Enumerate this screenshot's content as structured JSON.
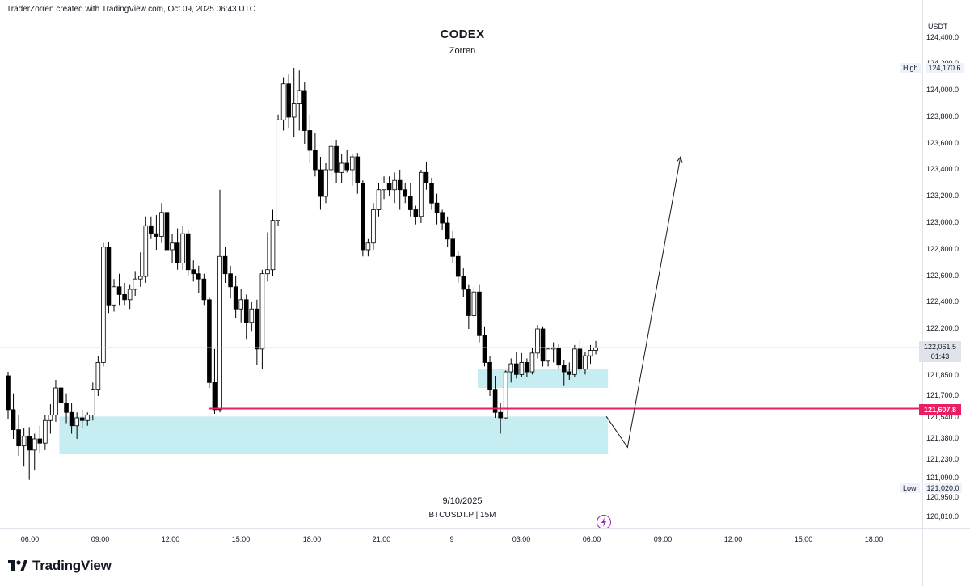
{
  "header": {
    "credit": "TraderZorren created with TradingView.com, Oct 09, 2025 06:43 UTC"
  },
  "title": "CODEX",
  "subtitle": "Zorren",
  "date_caption": "9/10/2025",
  "symbol_caption": "BTCUSDT.P | 15M",
  "currency": "USDT",
  "logo_text": "TradingView",
  "colors": {
    "bull": "#ffffff",
    "bear": "#000000",
    "zone": "#c6edf2",
    "level_line": "#e91e63",
    "projection": "#131722"
  },
  "markers": {
    "high_label": "High",
    "high_value": "124,170.6",
    "low_label": "Low",
    "low_value": "121,020.0",
    "current_price": "122,061.5",
    "countdown": "01:43",
    "level_price": "121,607.8"
  },
  "chart_data": {
    "type": "candlestick",
    "interval": "15M",
    "x_ticks": [
      "06:00",
      "09:00",
      "12:00",
      "15:00",
      "18:00",
      "21:00",
      "9",
      "03:00",
      "06:00",
      "09:00",
      "12:00",
      "15:00",
      "18:00"
    ],
    "y_ticks": [
      "124,400.0",
      "124,200.0",
      "124,000.0",
      "123,800.0",
      "123,600.0",
      "123,400.0",
      "123,200.0",
      "123,000.0",
      "122,800.0",
      "122,600.0",
      "122,400.0",
      "122,200.0",
      "121,850.0",
      "121,700.0",
      "121,540.0",
      "121,380.0",
      "121,230.0",
      "121,090.0",
      "120,950.0",
      "120,810.0"
    ],
    "y_tick_values": [
      124400,
      124200,
      124000,
      123800,
      123600,
      123400,
      123200,
      123000,
      122800,
      122600,
      122400,
      122200,
      121850,
      121700,
      121540,
      121380,
      121230,
      121090,
      120950,
      120810
    ],
    "candles": [
      {
        "o": 121850,
        "h": 121880,
        "l": 121530,
        "c": 121600
      },
      {
        "o": 121600,
        "h": 121720,
        "l": 121380,
        "c": 121450
      },
      {
        "o": 121450,
        "h": 121560,
        "l": 121260,
        "c": 121330
      },
      {
        "o": 121330,
        "h": 121460,
        "l": 121180,
        "c": 121400
      },
      {
        "o": 121400,
        "h": 121470,
        "l": 121080,
        "c": 121300
      },
      {
        "o": 121300,
        "h": 121420,
        "l": 121150,
        "c": 121380
      },
      {
        "o": 121380,
        "h": 121480,
        "l": 121280,
        "c": 121350
      },
      {
        "o": 121350,
        "h": 121560,
        "l": 121300,
        "c": 121520
      },
      {
        "o": 121520,
        "h": 121640,
        "l": 121420,
        "c": 121560
      },
      {
        "o": 121560,
        "h": 121820,
        "l": 121510,
        "c": 121760
      },
      {
        "o": 121760,
        "h": 121830,
        "l": 121600,
        "c": 121650
      },
      {
        "o": 121650,
        "h": 121720,
        "l": 121500,
        "c": 121580
      },
      {
        "o": 121580,
        "h": 121650,
        "l": 121420,
        "c": 121480
      },
      {
        "o": 121480,
        "h": 121580,
        "l": 121380,
        "c": 121540
      },
      {
        "o": 121540,
        "h": 121600,
        "l": 121460,
        "c": 121520
      },
      {
        "o": 121520,
        "h": 121580,
        "l": 121480,
        "c": 121560
      },
      {
        "o": 121560,
        "h": 121800,
        "l": 121520,
        "c": 121750
      },
      {
        "o": 121750,
        "h": 122000,
        "l": 121700,
        "c": 121950
      },
      {
        "o": 121950,
        "h": 122850,
        "l": 121920,
        "c": 122820
      },
      {
        "o": 122820,
        "h": 122860,
        "l": 122320,
        "c": 122380
      },
      {
        "o": 122380,
        "h": 122580,
        "l": 122330,
        "c": 122520
      },
      {
        "o": 122520,
        "h": 122620,
        "l": 122380,
        "c": 122460
      },
      {
        "o": 122460,
        "h": 122550,
        "l": 122380,
        "c": 122420
      },
      {
        "o": 122420,
        "h": 122540,
        "l": 122350,
        "c": 122500
      },
      {
        "o": 122500,
        "h": 122640,
        "l": 122450,
        "c": 122580
      },
      {
        "o": 122580,
        "h": 122780,
        "l": 122520,
        "c": 122600
      },
      {
        "o": 122600,
        "h": 123050,
        "l": 122550,
        "c": 122980
      },
      {
        "o": 122980,
        "h": 123050,
        "l": 122880,
        "c": 122920
      },
      {
        "o": 122920,
        "h": 123060,
        "l": 122800,
        "c": 122900
      },
      {
        "o": 122900,
        "h": 123150,
        "l": 122850,
        "c": 123080
      },
      {
        "o": 123080,
        "h": 123100,
        "l": 122780,
        "c": 122800
      },
      {
        "o": 122800,
        "h": 122920,
        "l": 122700,
        "c": 122850
      },
      {
        "o": 122850,
        "h": 122960,
        "l": 122650,
        "c": 122700
      },
      {
        "o": 122700,
        "h": 122980,
        "l": 122650,
        "c": 122920
      },
      {
        "o": 122920,
        "h": 122950,
        "l": 122600,
        "c": 122650
      },
      {
        "o": 122650,
        "h": 122720,
        "l": 122560,
        "c": 122620
      },
      {
        "o": 122620,
        "h": 122680,
        "l": 122470,
        "c": 122580
      },
      {
        "o": 122580,
        "h": 122620,
        "l": 122380,
        "c": 122420
      },
      {
        "o": 122420,
        "h": 122440,
        "l": 121760,
        "c": 121800
      },
      {
        "o": 121800,
        "h": 122050,
        "l": 121570,
        "c": 121600
      },
      {
        "o": 121600,
        "h": 123250,
        "l": 121580,
        "c": 122750
      },
      {
        "o": 122750,
        "h": 122820,
        "l": 122550,
        "c": 122620
      },
      {
        "o": 122620,
        "h": 122680,
        "l": 122430,
        "c": 122520
      },
      {
        "o": 122520,
        "h": 122600,
        "l": 122280,
        "c": 122350
      },
      {
        "o": 122350,
        "h": 122500,
        "l": 122250,
        "c": 122420
      },
      {
        "o": 122420,
        "h": 122460,
        "l": 122120,
        "c": 122250
      },
      {
        "o": 122250,
        "h": 122400,
        "l": 122180,
        "c": 122350
      },
      {
        "o": 122350,
        "h": 122420,
        "l": 121930,
        "c": 122050
      },
      {
        "o": 122050,
        "h": 122650,
        "l": 121900,
        "c": 122620
      },
      {
        "o": 122620,
        "h": 122930,
        "l": 122560,
        "c": 122650
      },
      {
        "o": 122650,
        "h": 123100,
        "l": 122600,
        "c": 123020
      },
      {
        "o": 123020,
        "h": 123820,
        "l": 122980,
        "c": 123780
      },
      {
        "o": 123780,
        "h": 124100,
        "l": 123700,
        "c": 124050
      },
      {
        "o": 124050,
        "h": 124120,
        "l": 123720,
        "c": 123800
      },
      {
        "o": 123800,
        "h": 124170,
        "l": 123650,
        "c": 123900
      },
      {
        "o": 123900,
        "h": 124150,
        "l": 123700,
        "c": 124000
      },
      {
        "o": 124000,
        "h": 124060,
        "l": 123600,
        "c": 123700
      },
      {
        "o": 123700,
        "h": 123820,
        "l": 123450,
        "c": 123550
      },
      {
        "o": 123550,
        "h": 123680,
        "l": 123350,
        "c": 123400
      },
      {
        "o": 123400,
        "h": 123500,
        "l": 123100,
        "c": 123200
      },
      {
        "o": 123200,
        "h": 123450,
        "l": 123150,
        "c": 123400
      },
      {
        "o": 123400,
        "h": 123620,
        "l": 123350,
        "c": 123580
      },
      {
        "o": 123580,
        "h": 123630,
        "l": 123300,
        "c": 123380
      },
      {
        "o": 123380,
        "h": 123520,
        "l": 123300,
        "c": 123450
      },
      {
        "o": 123450,
        "h": 123550,
        "l": 123380,
        "c": 123400
      },
      {
        "o": 123400,
        "h": 123520,
        "l": 123280,
        "c": 123500
      },
      {
        "o": 123500,
        "h": 123530,
        "l": 123220,
        "c": 123300
      },
      {
        "o": 123300,
        "h": 123320,
        "l": 122750,
        "c": 122800
      },
      {
        "o": 122800,
        "h": 122880,
        "l": 122750,
        "c": 122850
      },
      {
        "o": 122850,
        "h": 123150,
        "l": 122800,
        "c": 123100
      },
      {
        "o": 123100,
        "h": 123300,
        "l": 123050,
        "c": 123250
      },
      {
        "o": 123250,
        "h": 123350,
        "l": 123180,
        "c": 123300
      },
      {
        "o": 123300,
        "h": 123350,
        "l": 123200,
        "c": 123250
      },
      {
        "o": 123250,
        "h": 123380,
        "l": 123150,
        "c": 123320
      },
      {
        "o": 123320,
        "h": 123400,
        "l": 123100,
        "c": 123250
      },
      {
        "o": 123250,
        "h": 123300,
        "l": 123150,
        "c": 123200
      },
      {
        "o": 123200,
        "h": 123300,
        "l": 123050,
        "c": 123100
      },
      {
        "o": 123100,
        "h": 123130,
        "l": 122990,
        "c": 123050
      },
      {
        "o": 123050,
        "h": 123400,
        "l": 123000,
        "c": 123380
      },
      {
        "o": 123380,
        "h": 123460,
        "l": 123250,
        "c": 123300
      },
      {
        "o": 123300,
        "h": 123340,
        "l": 123100,
        "c": 123150
      },
      {
        "o": 123150,
        "h": 123220,
        "l": 122990,
        "c": 123080
      },
      {
        "o": 123080,
        "h": 123100,
        "l": 122950,
        "c": 123000
      },
      {
        "o": 123000,
        "h": 123050,
        "l": 122820,
        "c": 122880
      },
      {
        "o": 122880,
        "h": 122940,
        "l": 122700,
        "c": 122750
      },
      {
        "o": 122750,
        "h": 122790,
        "l": 122550,
        "c": 122600
      },
      {
        "o": 122600,
        "h": 122660,
        "l": 122440,
        "c": 122500
      },
      {
        "o": 122500,
        "h": 122540,
        "l": 122200,
        "c": 122300
      },
      {
        "o": 122300,
        "h": 122520,
        "l": 122280,
        "c": 122480
      },
      {
        "o": 122480,
        "h": 122540,
        "l": 122100,
        "c": 122150
      },
      {
        "o": 122150,
        "h": 122220,
        "l": 121920,
        "c": 121950
      },
      {
        "o": 121950,
        "h": 122000,
        "l": 121700,
        "c": 121750
      },
      {
        "o": 121750,
        "h": 121850,
        "l": 121540,
        "c": 121580
      },
      {
        "o": 121580,
        "h": 121650,
        "l": 121420,
        "c": 121540
      },
      {
        "o": 121540,
        "h": 121890,
        "l": 121530,
        "c": 121880
      },
      {
        "o": 121880,
        "h": 121980,
        "l": 121800,
        "c": 121940
      },
      {
        "o": 121940,
        "h": 122030,
        "l": 121830,
        "c": 121860
      },
      {
        "o": 121860,
        "h": 122020,
        "l": 121840,
        "c": 121950
      },
      {
        "o": 121950,
        "h": 121980,
        "l": 121840,
        "c": 121880
      },
      {
        "o": 121880,
        "h": 122060,
        "l": 121860,
        "c": 122020
      },
      {
        "o": 122020,
        "h": 122230,
        "l": 121980,
        "c": 122200
      },
      {
        "o": 122200,
        "h": 122220,
        "l": 121920,
        "c": 121960
      },
      {
        "o": 121960,
        "h": 122060,
        "l": 121920,
        "c": 122050
      },
      {
        "o": 122050,
        "h": 122100,
        "l": 121950,
        "c": 122060
      },
      {
        "o": 122060,
        "h": 122090,
        "l": 121900,
        "c": 121930
      },
      {
        "o": 121930,
        "h": 121970,
        "l": 121780,
        "c": 121880
      },
      {
        "o": 121880,
        "h": 121950,
        "l": 121820,
        "c": 121860
      },
      {
        "o": 121860,
        "h": 122080,
        "l": 121840,
        "c": 122050
      },
      {
        "o": 122050,
        "h": 122110,
        "l": 121870,
        "c": 121900
      },
      {
        "o": 121900,
        "h": 122030,
        "l": 121860,
        "c": 122000
      },
      {
        "o": 122000,
        "h": 122080,
        "l": 121940,
        "c": 122040
      },
      {
        "o": 122040,
        "h": 122110,
        "l": 122010,
        "c": 122060
      }
    ],
    "zones": [
      {
        "from_candle": 10,
        "to_candle": 113,
        "top": 121550,
        "bottom": 121270
      },
      {
        "from_candle": 89,
        "to_candle": 113,
        "top": 121900,
        "bottom": 121760
      }
    ],
    "level": {
      "from_candle": 38,
      "value": 121607.8
    },
    "projection": [
      {
        "candle": 113,
        "value": 121550
      },
      {
        "candle": 117,
        "value": 121320
      },
      {
        "candle": 127,
        "value": 123500
      }
    ],
    "legend": "none",
    "grid": false
  }
}
